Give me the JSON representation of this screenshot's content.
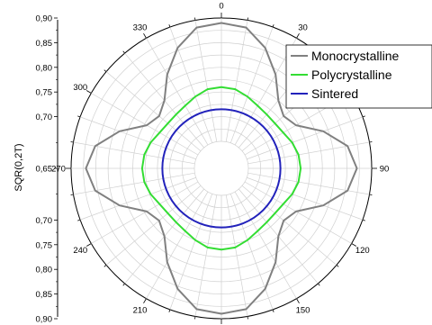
{
  "chart_data": {
    "type": "polar-line",
    "ylabel": "SQR(0,2T)",
    "radial_range": [
      0.65,
      0.9
    ],
    "radial_ticks": [
      0.9,
      0.85,
      0.8,
      0.75,
      0.7,
      0.65,
      0.7,
      0.75,
      0.8,
      0.85,
      0.9
    ],
    "radial_tick_labels": [
      "0,90",
      "0,85",
      "0,80",
      "0,75",
      "0,70",
      "0,65",
      "0,70",
      "0,75",
      "0,80",
      "0,85",
      "0,90"
    ],
    "angular_ticks": [
      0,
      30,
      90,
      120,
      150,
      180,
      210,
      240,
      270,
      300,
      330
    ],
    "angular_tick_labels": [
      "0",
      "30",
      "90",
      "120",
      "150",
      "180",
      "210",
      "240",
      "270",
      "300",
      "330"
    ],
    "grid": true,
    "legend_position": "top-right",
    "series": [
      {
        "name": "Monocrystalline",
        "color": "#808080",
        "angles": [
          0,
          10,
          20,
          30,
          40,
          50,
          60,
          70,
          80,
          90,
          100,
          110,
          120,
          130,
          140,
          150,
          160,
          170,
          180,
          190,
          200,
          210,
          220,
          230,
          240,
          250,
          260,
          270,
          280,
          290,
          300,
          310,
          320,
          330,
          340,
          350
        ],
        "values": [
          0.89,
          0.885,
          0.855,
          0.815,
          0.775,
          0.76,
          0.77,
          0.815,
          0.855,
          0.87,
          0.855,
          0.815,
          0.77,
          0.76,
          0.775,
          0.815,
          0.855,
          0.885,
          0.89,
          0.885,
          0.855,
          0.815,
          0.775,
          0.76,
          0.77,
          0.815,
          0.855,
          0.87,
          0.855,
          0.815,
          0.77,
          0.76,
          0.775,
          0.815,
          0.855,
          0.885
        ]
      },
      {
        "name": "Polycrystalline",
        "color": "#33dd33",
        "angles": [
          0,
          10,
          20,
          30,
          40,
          50,
          60,
          70,
          80,
          90,
          100,
          110,
          120,
          130,
          140,
          150,
          160,
          170,
          180,
          190,
          200,
          210,
          220,
          230,
          240,
          250,
          260,
          270,
          280,
          290,
          300,
          310,
          320,
          330,
          340,
          350
        ],
        "values": [
          0.76,
          0.758,
          0.75,
          0.742,
          0.738,
          0.737,
          0.74,
          0.748,
          0.754,
          0.756,
          0.754,
          0.748,
          0.74,
          0.737,
          0.738,
          0.742,
          0.75,
          0.758,
          0.76,
          0.758,
          0.75,
          0.742,
          0.738,
          0.737,
          0.74,
          0.748,
          0.754,
          0.756,
          0.754,
          0.748,
          0.74,
          0.737,
          0.738,
          0.742,
          0.75,
          0.758
        ]
      },
      {
        "name": "Sintered",
        "color": "#2222bb",
        "angles": [
          0,
          30,
          60,
          90,
          120,
          150,
          180,
          210,
          240,
          270,
          300,
          330
        ],
        "values": [
          0.715,
          0.715,
          0.715,
          0.715,
          0.715,
          0.715,
          0.715,
          0.715,
          0.715,
          0.715,
          0.715,
          0.715
        ]
      }
    ]
  }
}
